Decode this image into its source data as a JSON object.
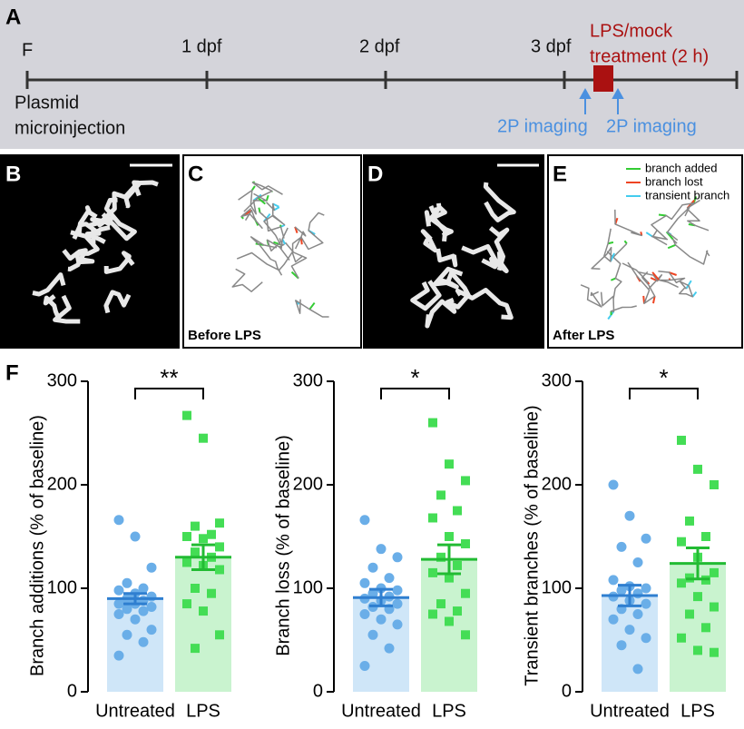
{
  "panel_labels": [
    "A",
    "B",
    "C",
    "D",
    "E",
    "F"
  ],
  "timeline": {
    "start": "F",
    "ticks": [
      "1 dpf",
      "2 dpf",
      "3 dpf"
    ],
    "start_note": [
      "Plasmid",
      "microinjection"
    ],
    "treatment": [
      "LPS/mock",
      "treatment (2 h)"
    ],
    "imaging": [
      "2P imaging",
      "2P imaging"
    ]
  },
  "images": {
    "before": "Before LPS",
    "after": "After LPS",
    "legend": [
      {
        "name": "branch added",
        "color": "#33cc33"
      },
      {
        "name": "branch lost",
        "color": "#ee4422"
      },
      {
        "name": "transient branch",
        "color": "#44ccee"
      }
    ]
  },
  "chart_data": [
    {
      "type": "bar",
      "ylabel": "Branch additions (% of baseline)",
      "categories": [
        "Untreated",
        "LPS"
      ],
      "values": [
        90,
        130
      ],
      "errors": [
        5,
        12
      ],
      "significance": "**",
      "colors": [
        "#cfe6f8",
        "#c9f3cf"
      ],
      "point_colors": [
        "#6aaee8",
        "#44dd55"
      ],
      "points": [
        [
          166,
          150,
          120,
          105,
          100,
          98,
          95,
          92,
          90,
          88,
          85,
          85,
          82,
          80,
          78,
          75,
          70,
          60,
          55,
          48,
          35
        ],
        [
          267,
          245,
          163,
          160,
          152,
          150,
          148,
          140,
          135,
          130,
          125,
          122,
          118,
          100,
          95,
          85,
          78,
          55,
          42
        ]
      ],
      "ylim": [
        0,
        300
      ],
      "yticks": [
        0,
        100,
        200,
        300
      ]
    },
    {
      "type": "bar",
      "ylabel": "Branch loss (% of baseline)",
      "categories": [
        "Untreated",
        "LPS"
      ],
      "values": [
        91,
        128
      ],
      "errors": [
        8,
        14
      ],
      "significance": "*",
      "colors": [
        "#cfe6f8",
        "#c9f3cf"
      ],
      "point_colors": [
        "#6aaee8",
        "#44dd55"
      ],
      "points": [
        [
          166,
          138,
          130,
          120,
          110,
          105,
          100,
          98,
          95,
          92,
          90,
          88,
          85,
          82,
          80,
          75,
          70,
          65,
          55,
          42,
          25
        ],
        [
          260,
          220,
          204,
          190,
          175,
          168,
          150,
          143,
          130,
          122,
          115,
          110,
          95,
          85,
          78,
          75,
          68,
          55
        ]
      ],
      "ylim": [
        0,
        300
      ],
      "yticks": [
        0,
        100,
        200,
        300
      ]
    },
    {
      "type": "bar",
      "ylabel": "Transient branches (% of baseline)",
      "categories": [
        "Untreated",
        "LPS"
      ],
      "values": [
        93,
        124
      ],
      "errors": [
        10,
        15
      ],
      "significance": "*",
      "colors": [
        "#cfe6f8",
        "#c9f3cf"
      ],
      "point_colors": [
        "#6aaee8",
        "#44dd55"
      ],
      "points": [
        [
          200,
          170,
          148,
          140,
          125,
          108,
          102,
          100,
          98,
          95,
          92,
          88,
          85,
          80,
          75,
          70,
          60,
          52,
          45,
          22
        ],
        [
          243,
          215,
          200,
          165,
          150,
          145,
          130,
          115,
          110,
          108,
          105,
          92,
          82,
          75,
          62,
          52,
          40,
          38
        ]
      ],
      "ylim": [
        0,
        300
      ],
      "yticks": [
        0,
        100,
        200,
        300
      ]
    }
  ]
}
